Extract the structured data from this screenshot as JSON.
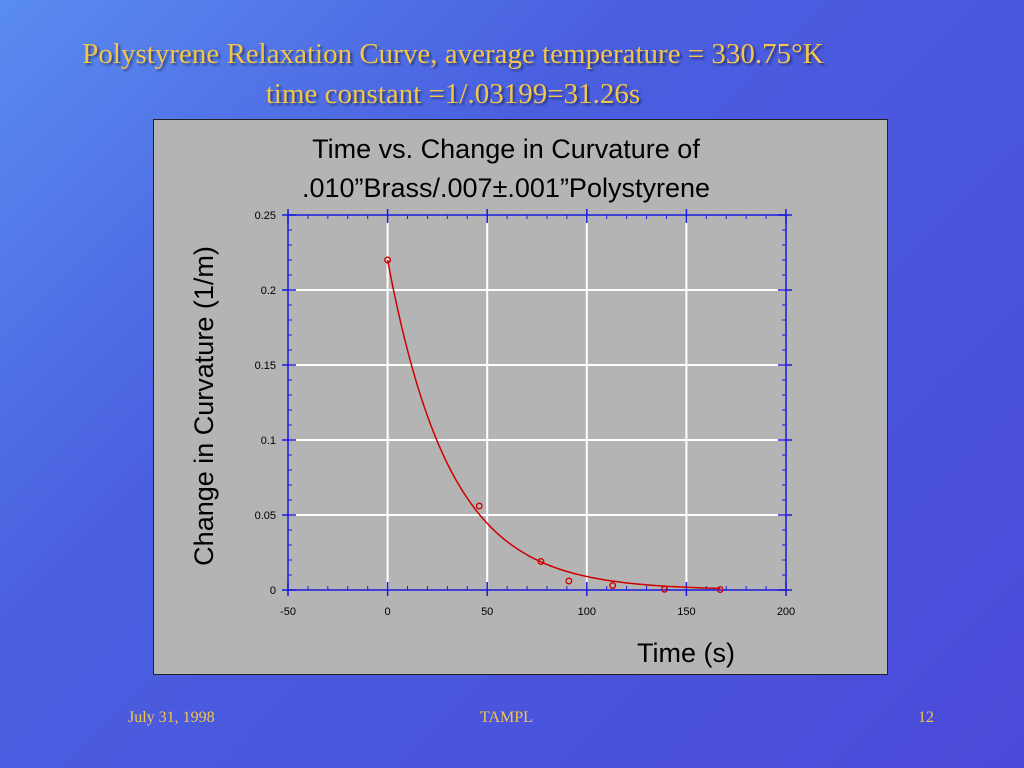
{
  "slide": {
    "title_line1": "Polystyrene Relaxation Curve, average temperature = 330.75°K",
    "title_line2": "time constant =1/.03199=31.26s"
  },
  "footer": {
    "date": "July 31, 1998",
    "organization": "TAMPL",
    "page_number": "12"
  },
  "colors": {
    "title_text": "#f2c64a",
    "plot_background": "#b4b4b4",
    "axis": "#1a1ae0",
    "data": "#cc0000",
    "grid": "#ffffff"
  },
  "chart_data": {
    "type": "scatter",
    "title_line1": "Time vs. Change in Curvature of",
    "title_line2": ".010”Brass/.007±.001”Polystyrene",
    "xlabel": "Time (s)",
    "ylabel": "Change in Curvature (1/m)",
    "xlim": [
      -50,
      200
    ],
    "ylim": [
      0,
      0.25
    ],
    "x_ticks": [
      "-50",
      "0",
      "50",
      "100",
      "150",
      "200"
    ],
    "y_ticks": [
      "0",
      "0.05",
      "0.1",
      "0.15",
      "0.2",
      "0.25"
    ],
    "grid": true,
    "series": [
      {
        "points": [
          {
            "x": 0,
            "y": 0.22
          },
          {
            "x": 46,
            "y": 0.056
          },
          {
            "x": 77,
            "y": 0.019
          },
          {
            "x": 91,
            "y": 0.006
          },
          {
            "x": 113,
            "y": 0.003
          },
          {
            "x": 139,
            "y": 0.0005
          },
          {
            "x": 167,
            "y": 0.0003
          }
        ]
      }
    ],
    "fit_curve": {
      "type": "exponential",
      "amplitude": 0.22,
      "rate": 0.03199,
      "x_start": 0,
      "x_end": 167
    }
  }
}
